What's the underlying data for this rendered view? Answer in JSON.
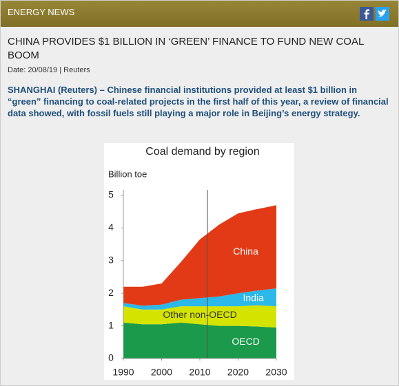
{
  "header": {
    "section": "ENERGY NEWS"
  },
  "article": {
    "title": "CHINA PROVIDES $1 BILLION IN ‘GREEN’ FINANCE TO FUND NEW COAL BOOM",
    "date": "Date: 20/08/19 | Reuters",
    "lead": "SHANGHAI (Reuters) – Chinese financial institutions provided at least $1 billion in “green” financing to coal-related projects in the first half of this year, a review of financial data showed, with fossil fuels still playing a major role in Beijing’s energy strategy."
  },
  "chart_data": {
    "type": "stacked_area",
    "title": "Coal demand by region",
    "y_label": "Billion toe",
    "x": [
      1990,
      1995,
      2000,
      2005,
      2010,
      2015,
      2020,
      2025,
      2030
    ],
    "series": [
      {
        "name": "OECD",
        "color": "#1a9a4a",
        "values": [
          1.1,
          1.05,
          1.05,
          1.1,
          1.05,
          1.0,
          1.0,
          0.98,
          0.95
        ]
      },
      {
        "name": "Other non-OECD",
        "color": "#d4e400",
        "values": [
          0.5,
          0.45,
          0.45,
          0.5,
          0.55,
          0.6,
          0.6,
          0.65,
          0.65
        ]
      },
      {
        "name": "India",
        "color": "#2cb8e8",
        "values": [
          0.1,
          0.12,
          0.15,
          0.2,
          0.25,
          0.3,
          0.4,
          0.45,
          0.55
        ]
      },
      {
        "name": "China",
        "color": "#e23a16",
        "values": [
          0.5,
          0.58,
          0.65,
          1.15,
          1.8,
          2.2,
          2.45,
          2.5,
          2.55
        ]
      }
    ],
    "xlim": [
      1990,
      2030
    ],
    "xticks": [
      1990,
      2000,
      2010,
      2020,
      2030
    ],
    "ylim": [
      0,
      5
    ],
    "yticks": [
      0,
      1,
      2,
      3,
      4,
      5
    ],
    "vline": 2012
  }
}
